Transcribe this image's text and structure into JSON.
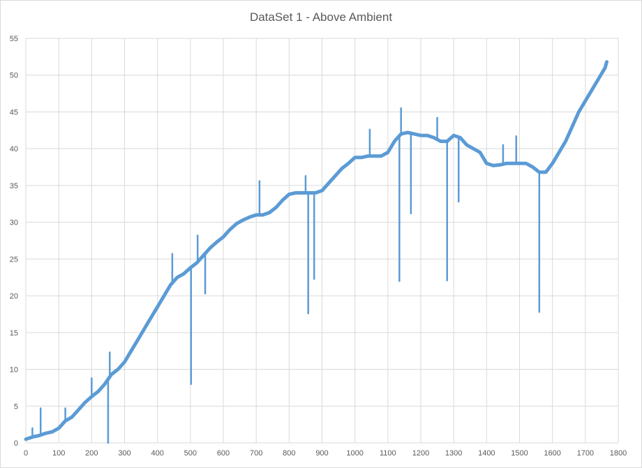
{
  "chart_data": {
    "type": "line",
    "title": "DataSet 1 - Above Ambient",
    "xlabel": "",
    "ylabel": "",
    "xlim": [
      0,
      1800
    ],
    "ylim": [
      0,
      55
    ],
    "x_ticks": [
      0,
      100,
      200,
      300,
      400,
      500,
      600,
      700,
      800,
      900,
      1000,
      1100,
      1200,
      1300,
      1400,
      1500,
      1600,
      1700,
      1800
    ],
    "y_ticks": [
      0,
      5,
      10,
      15,
      20,
      25,
      30,
      35,
      40,
      45,
      50,
      55
    ],
    "grid": true,
    "legend": "none",
    "series_color": "#5b9bd5",
    "series": [
      {
        "values_x": [
          0,
          20,
          40,
          60,
          80,
          100,
          120,
          140,
          160,
          180,
          200,
          220,
          240,
          260,
          280,
          300,
          320,
          340,
          360,
          380,
          400,
          420,
          440,
          460,
          480,
          500,
          520,
          540,
          560,
          580,
          600,
          620,
          640,
          660,
          680,
          700,
          720,
          740,
          760,
          780,
          800,
          820,
          840,
          860,
          880,
          900,
          920,
          940,
          960,
          980,
          1000,
          1020,
          1040,
          1060,
          1080,
          1100,
          1120,
          1140,
          1160,
          1180,
          1200,
          1220,
          1240,
          1260,
          1280,
          1300,
          1320,
          1340,
          1360,
          1380,
          1400,
          1420,
          1440,
          1460,
          1480,
          1500,
          1520,
          1540,
          1560,
          1580,
          1600,
          1620,
          1640,
          1660,
          1680,
          1700,
          1720,
          1740,
          1760,
          1765
        ],
        "values_y": [
          0.5,
          0.8,
          1.0,
          1.3,
          1.5,
          2.0,
          3.0,
          3.5,
          4.5,
          5.5,
          6.3,
          7.0,
          8.0,
          9.3,
          10.0,
          11.0,
          12.5,
          14.0,
          15.5,
          17.0,
          18.5,
          20.0,
          21.5,
          22.5,
          23.0,
          23.8,
          24.5,
          25.5,
          26.5,
          27.3,
          28.0,
          29.0,
          29.8,
          30.3,
          30.7,
          31.0,
          31.0,
          31.3,
          32.0,
          33.0,
          33.8,
          34.0,
          34.0,
          34.0,
          34.0,
          34.3,
          35.3,
          36.3,
          37.3,
          38.0,
          38.8,
          38.8,
          39.0,
          39.0,
          39.0,
          39.5,
          41.0,
          42.0,
          42.2,
          42.0,
          41.8,
          41.8,
          41.5,
          41.0,
          41.0,
          41.8,
          41.5,
          40.5,
          40.0,
          39.5,
          38.0,
          37.7,
          37.8,
          38.0,
          38.0,
          38.0,
          38.0,
          37.5,
          36.8,
          36.8,
          38.0,
          39.5,
          41.0,
          43.0,
          45.0,
          46.5,
          48.0,
          49.5,
          51.0,
          51.8
        ]
      }
    ],
    "spikes": [
      {
        "x": 20,
        "y": 2.0
      },
      {
        "x": 45,
        "y": 4.7
      },
      {
        "x": 120,
        "y": 4.7
      },
      {
        "x": 200,
        "y": 8.8
      },
      {
        "x": 250,
        "y": 0.0
      },
      {
        "x": 255,
        "y": 12.3
      },
      {
        "x": 445,
        "y": 25.7
      },
      {
        "x": 502,
        "y": 8.0
      },
      {
        "x": 522,
        "y": 28.2
      },
      {
        "x": 545,
        "y": 20.3
      },
      {
        "x": 710,
        "y": 35.6
      },
      {
        "x": 850,
        "y": 36.3
      },
      {
        "x": 858,
        "y": 17.6
      },
      {
        "x": 876,
        "y": 22.3
      },
      {
        "x": 1045,
        "y": 42.6
      },
      {
        "x": 1135,
        "y": 22.0
      },
      {
        "x": 1140,
        "y": 45.5
      },
      {
        "x": 1170,
        "y": 31.2
      },
      {
        "x": 1250,
        "y": 44.2
      },
      {
        "x": 1280,
        "y": 22.1
      },
      {
        "x": 1315,
        "y": 32.8
      },
      {
        "x": 1450,
        "y": 40.5
      },
      {
        "x": 1490,
        "y": 41.7
      },
      {
        "x": 1560,
        "y": 17.8
      }
    ]
  }
}
